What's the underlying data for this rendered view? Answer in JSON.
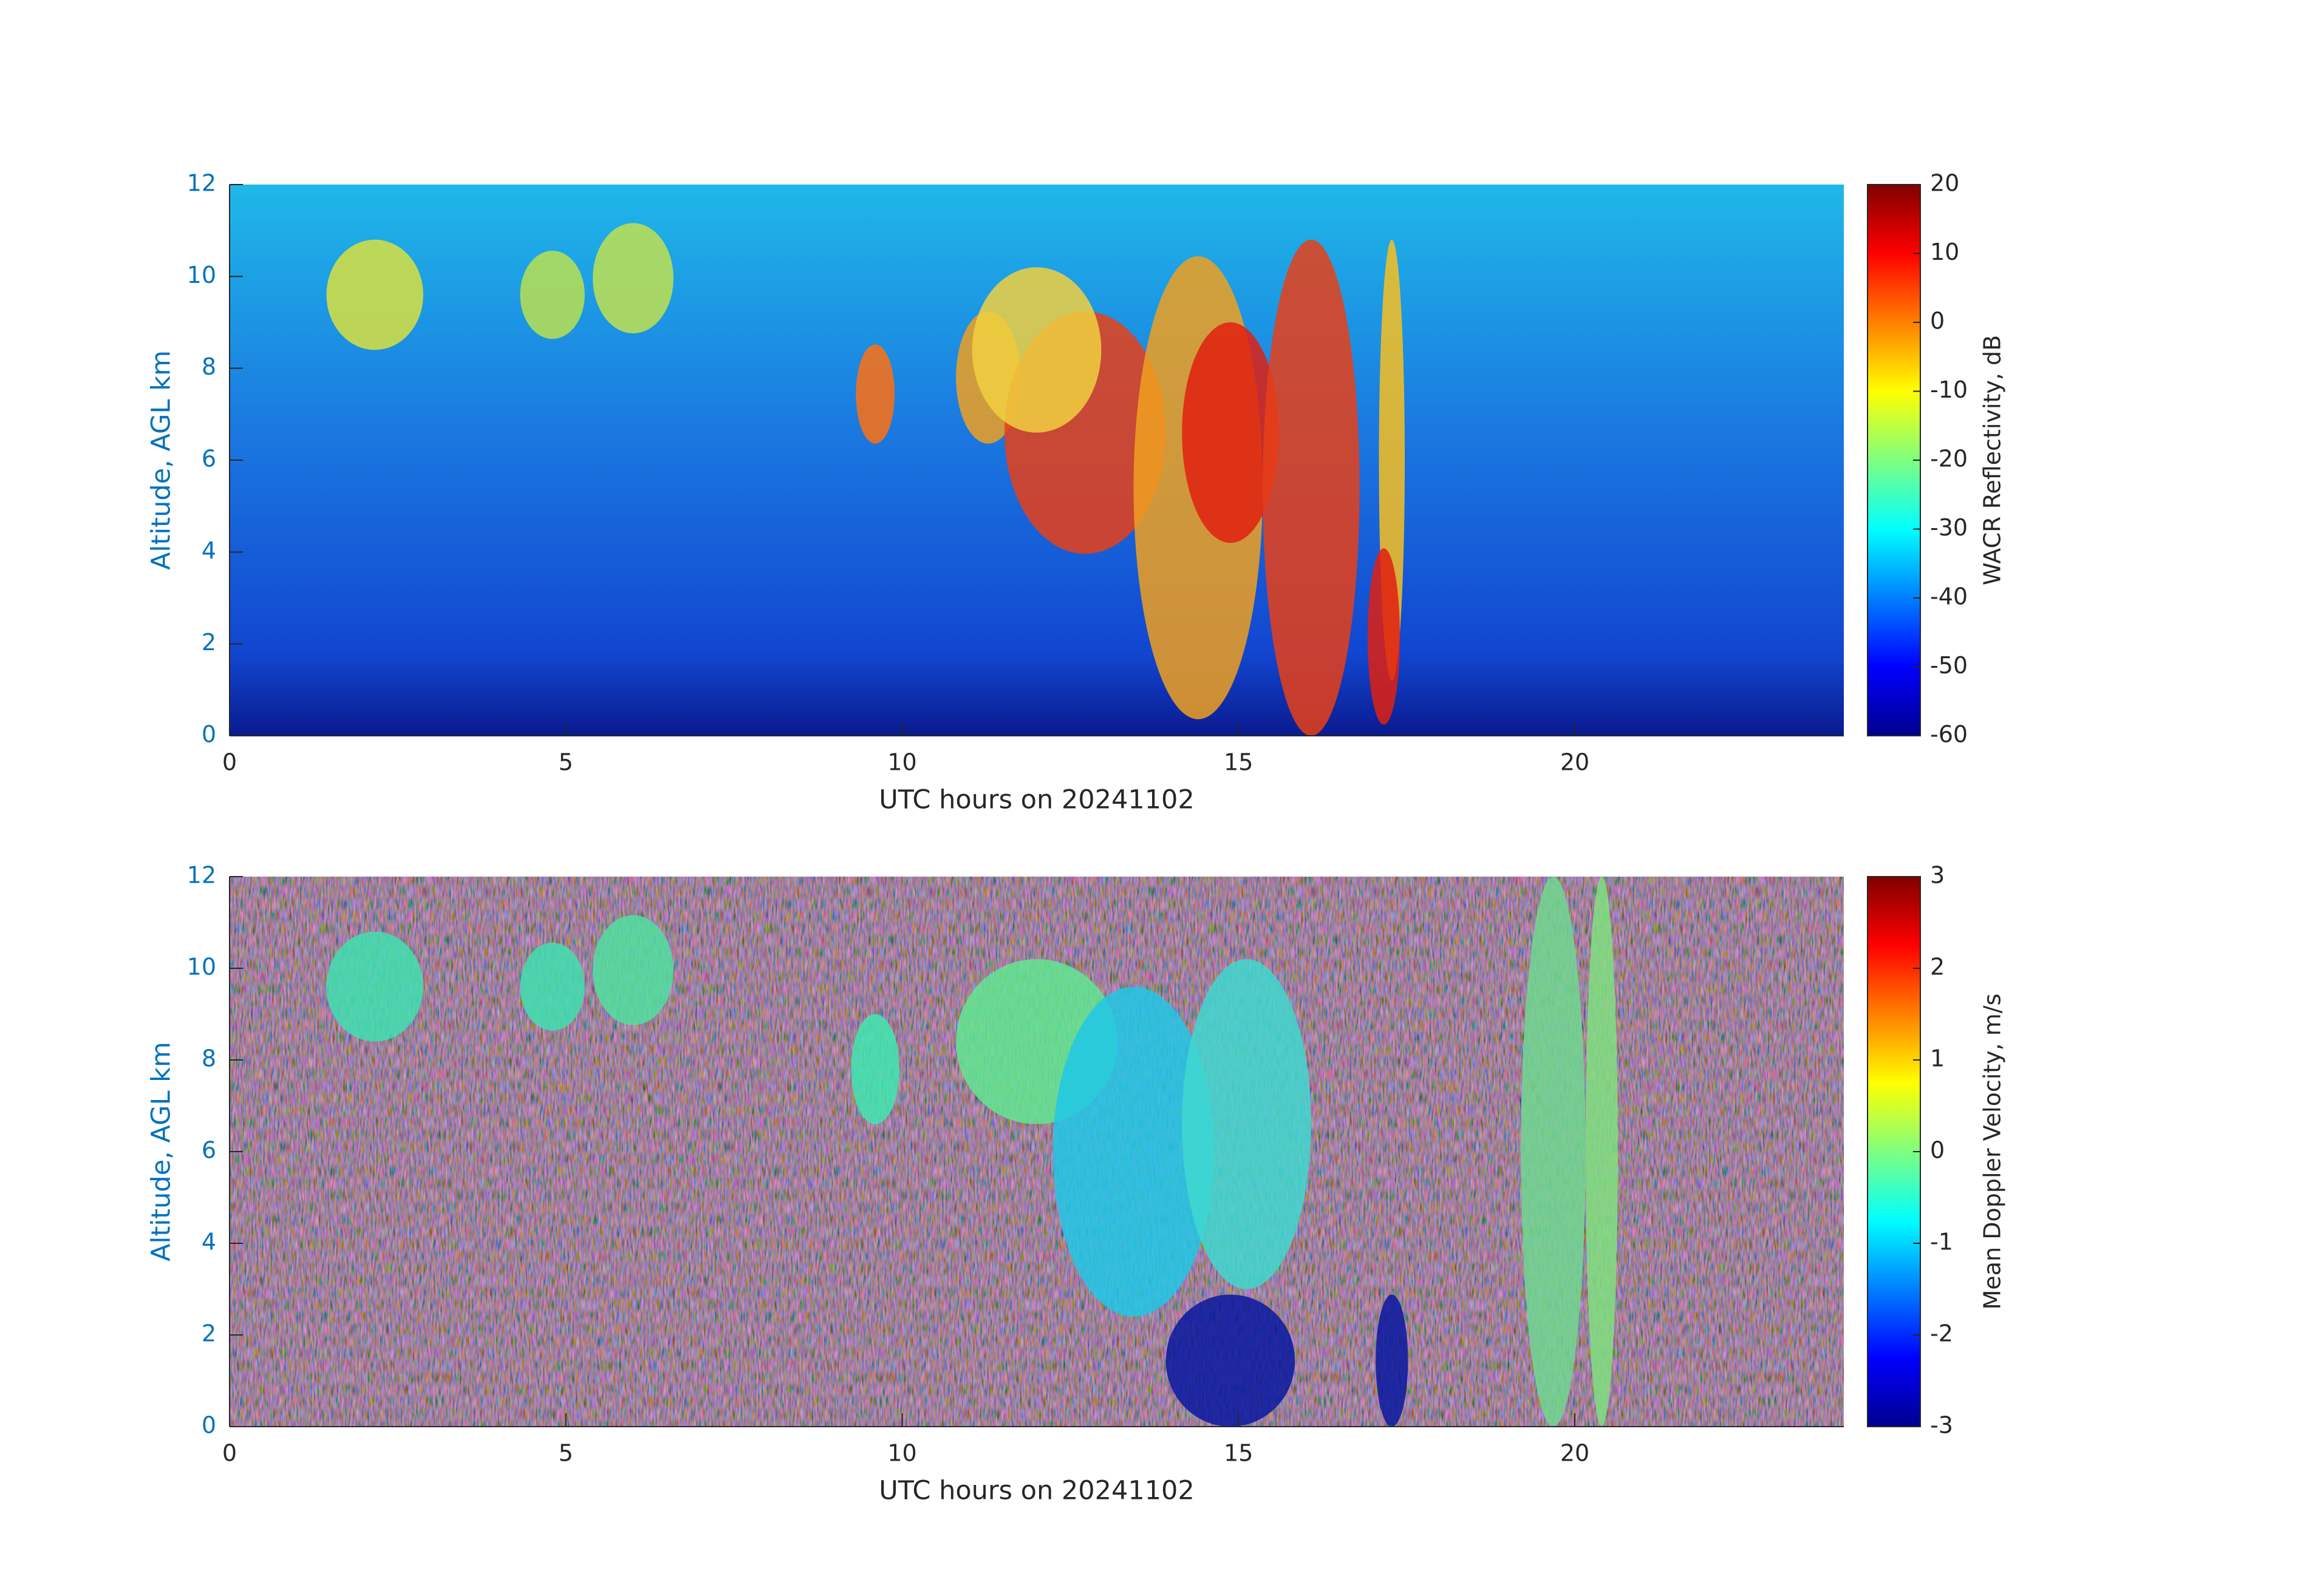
{
  "chart_data": [
    {
      "type": "heatmap",
      "xlabel": "UTC hours on 20241102",
      "ylabel": "Altitude, AGL km",
      "xlim": [
        0,
        24
      ],
      "xticks": [
        0,
        5,
        10,
        15,
        20
      ],
      "ylim": [
        0,
        12
      ],
      "yticks": [
        0,
        2,
        4,
        6,
        8,
        10,
        12
      ],
      "colorbar": {
        "label": "WACR Reflectivity, dB",
        "lim": [
          -60,
          20
        ],
        "ticks": [
          -60,
          -50,
          -40,
          -30,
          -20,
          -10,
          0,
          10,
          20
        ],
        "colormap": "jet"
      }
    },
    {
      "type": "heatmap",
      "xlabel": "UTC hours on 20241102",
      "ylabel": "Altitude, AGL km",
      "xlim": [
        0,
        24
      ],
      "xticks": [
        0,
        5,
        10,
        15,
        20
      ],
      "ylim": [
        0,
        12
      ],
      "yticks": [
        0,
        2,
        4,
        6,
        8,
        10,
        12
      ],
      "colorbar": {
        "label": "Mean Doppler Velocity, m/s",
        "lim": [
          -3,
          3
        ],
        "ticks": [
          -3,
          -2,
          -1,
          0,
          1,
          2,
          3
        ],
        "colormap": "jet"
      }
    }
  ]
}
